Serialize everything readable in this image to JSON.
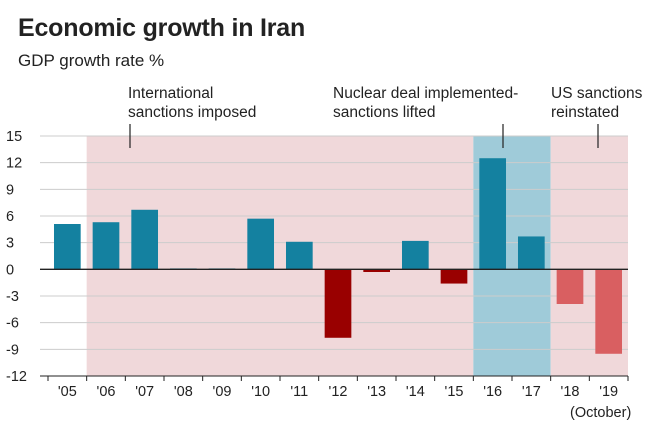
{
  "chart_data": {
    "type": "bar",
    "title": "Economic growth in Iran",
    "subtitle": "GDP growth rate %",
    "xlabel": "",
    "ylabel": "",
    "ylim": [
      -12,
      15
    ],
    "yticks": [
      15,
      12,
      9,
      6,
      3,
      0,
      -3,
      -6,
      -9,
      -12
    ],
    "ytick_labels": [
      "15",
      "12",
      "9",
      "6",
      "3",
      "0",
      "-3",
      "-6",
      "-9",
      "-12"
    ],
    "categories": [
      "'05",
      "'06",
      "'07",
      "'08",
      "'09",
      "'10",
      "'11",
      "'12",
      "'13",
      "'14",
      "'15",
      "'16",
      "'17",
      "'18",
      "'19"
    ],
    "values": [
      5.1,
      5.3,
      6.7,
      0.1,
      0.1,
      5.7,
      3.1,
      -7.7,
      -0.3,
      3.2,
      -1.6,
      12.5,
      3.7,
      -3.9,
      -9.5
    ],
    "value_status": [
      "actual",
      "actual",
      "actual",
      "actual",
      "actual",
      "actual",
      "actual",
      "actual",
      "actual",
      "actual",
      "actual",
      "actual",
      "actual",
      "forecast",
      "forecast"
    ],
    "extra_label": {
      "category": "'19",
      "text": "(October)"
    },
    "periods": [
      {
        "name": "sanctions",
        "from_index": 1,
        "to_index": 10,
        "label": [
          "International",
          "sanctions imposed"
        ],
        "color": "#f0d8da"
      },
      {
        "name": "deal",
        "from_index": 11,
        "to_index": 12,
        "label": [
          "Nuclear deal implemented-",
          "sanctions lifted"
        ],
        "color": "#9fcbd9"
      },
      {
        "name": "us-sanctions",
        "from_index": 13,
        "to_index": 14,
        "label": [
          "US sanctions",
          "reinstated"
        ],
        "color": "#f0d8da"
      }
    ],
    "colors": {
      "positive": "#1481a0",
      "negative": "#990000",
      "forecast_negative": "#d95f61",
      "sanctions_band": "#f0d8da",
      "deal_band": "#9fcbd9",
      "gridline": "#cccccc"
    }
  }
}
